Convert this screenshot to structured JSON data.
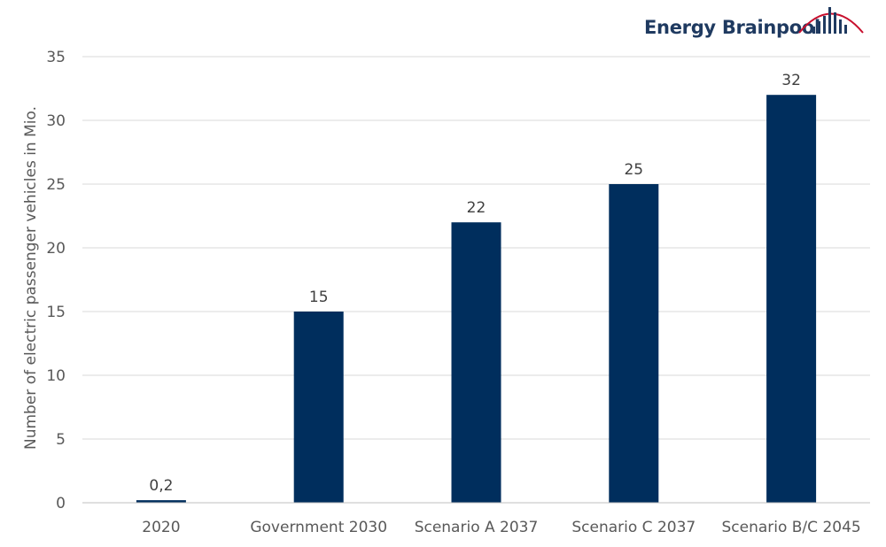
{
  "brand": {
    "name": "Energy Brainpool",
    "text_color": "#1f3a60",
    "arc_color": "#c8102e",
    "bars_color": "#1f3a60"
  },
  "chart_data": {
    "type": "bar",
    "categories": [
      "2020",
      "Government 2030",
      "Scenario A 2037",
      "Scenario C 2037",
      "Scenario B/C 2045"
    ],
    "values": [
      0.2,
      15,
      22,
      25,
      32
    ],
    "data_labels": [
      "0,2",
      "15",
      "22",
      "25",
      "32"
    ],
    "title": "",
    "xlabel": "",
    "ylabel": "Number of electric passenger vehicles in Mio.",
    "ylim": [
      0,
      35
    ],
    "yticks": [
      0,
      5,
      10,
      15,
      20,
      25,
      30,
      35
    ],
    "grid": true,
    "legend": "none",
    "bar_color": "#002e5d"
  }
}
